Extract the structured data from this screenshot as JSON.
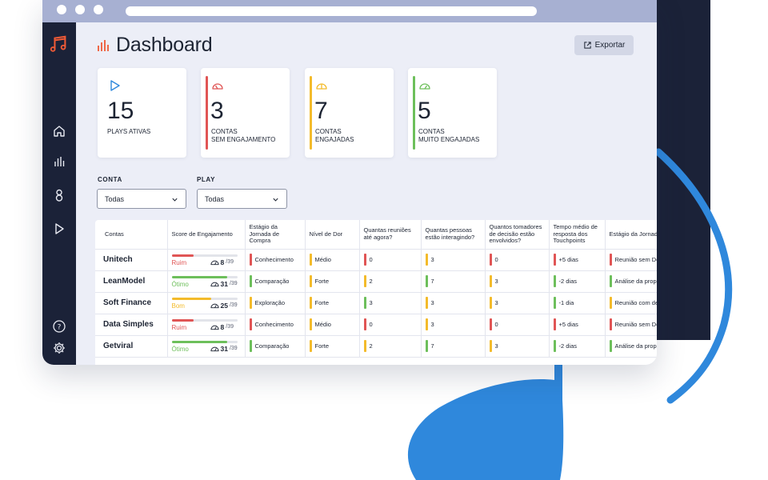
{
  "colors": {
    "red": "#e05555",
    "yellow": "#f3bb2b",
    "green": "#6dbf5b",
    "blue": "#2f88dc",
    "navy": "#1b2238",
    "orange": "#ef5a36"
  },
  "sidebar": {
    "icons": [
      "music-note-logo-icon",
      "home-icon",
      "bar-chart-icon",
      "user-icon",
      "play-icon",
      "help-icon",
      "gear-icon"
    ]
  },
  "header": {
    "title": "Dashboard",
    "export_label": "Exportar"
  },
  "cards": [
    {
      "value": "15",
      "label": "PLAYS ATIVAS",
      "icon": "play-icon",
      "accent": ""
    },
    {
      "value": "3",
      "label": "CONTAS\nSEM ENGAJAMENTO",
      "icon": "gauge-icon",
      "accent": "#e05555"
    },
    {
      "value": "7",
      "label": "CONTAS\nENGAJADAS",
      "icon": "gauge-icon",
      "accent": "#f3bb2b"
    },
    {
      "value": "5",
      "label": "CONTAS\nMUITO ENGAJADAS",
      "icon": "gauge-icon",
      "accent": "#6dbf5b"
    }
  ],
  "filters": {
    "conta": {
      "label": "CONTA",
      "value": "Todas"
    },
    "play": {
      "label": "PLAY",
      "value": "Todas"
    }
  },
  "table": {
    "headers": [
      "Contas",
      "Score de Engajamento",
      "Estágio da Jornada de Compra",
      "Nível de Dor",
      "Quantas reuniões até agora?",
      "Quantas pessoas estão interagindo?",
      "Quantos tomadores de decisão estão envolvidos?",
      "Tempo médio de resposta dos Touchpoints",
      "Estágio da Jornada de Decisão"
    ],
    "rows": [
      {
        "account": "Unitech",
        "level": "Ruim",
        "level_color": "#e05555",
        "score": "8",
        "max": "/39",
        "fill": 0.33,
        "cells": [
          [
            "Conhecimento",
            "#e05555"
          ],
          [
            "Médio",
            "#f3bb2b"
          ],
          [
            "0",
            "#e05555"
          ],
          [
            "3",
            "#f3bb2b"
          ],
          [
            "0",
            "#e05555"
          ],
          [
            "+5 dias",
            "#e05555"
          ],
          [
            "Reunião sem Decisor",
            "#e05555"
          ]
        ]
      },
      {
        "account": "LeanModel",
        "level": "Ótimo",
        "level_color": "#6dbf5b",
        "score": "31",
        "max": "/39",
        "fill": 0.85,
        "cells": [
          [
            "Comparação",
            "#6dbf5b"
          ],
          [
            "Forte",
            "#f3bb2b"
          ],
          [
            "2",
            "#f3bb2b"
          ],
          [
            "7",
            "#6dbf5b"
          ],
          [
            "3",
            "#f3bb2b"
          ],
          [
            "-2 dias",
            "#6dbf5b"
          ],
          [
            "Análise da proposta",
            "#6dbf5b"
          ]
        ]
      },
      {
        "account": "Soft Finance",
        "level": "Bom",
        "level_color": "#f3bb2b",
        "score": "25",
        "max": "/39",
        "fill": 0.6,
        "cells": [
          [
            "Exploração",
            "#f3bb2b"
          ],
          [
            "Forte",
            "#f3bb2b"
          ],
          [
            "3",
            "#6dbf5b"
          ],
          [
            "3",
            "#f3bb2b"
          ],
          [
            "3",
            "#f3bb2b"
          ],
          [
            "-1 dia",
            "#6dbf5b"
          ],
          [
            "Reunião com decisor",
            "#f3bb2b"
          ]
        ]
      },
      {
        "account": "Data Simples",
        "level": "Ruim",
        "level_color": "#e05555",
        "score": "8",
        "max": "/39",
        "fill": 0.33,
        "cells": [
          [
            "Conhecimento",
            "#e05555"
          ],
          [
            "Médio",
            "#f3bb2b"
          ],
          [
            "0",
            "#e05555"
          ],
          [
            "3",
            "#f3bb2b"
          ],
          [
            "0",
            "#e05555"
          ],
          [
            "+5 dias",
            "#e05555"
          ],
          [
            "Reunião sem Decisor",
            "#e05555"
          ]
        ]
      },
      {
        "account": "Getviral",
        "level": "Ótimo",
        "level_color": "#6dbf5b",
        "score": "31",
        "max": "/39",
        "fill": 0.85,
        "cells": [
          [
            "Comparação",
            "#6dbf5b"
          ],
          [
            "Forte",
            "#f3bb2b"
          ],
          [
            "2",
            "#f3bb2b"
          ],
          [
            "7",
            "#6dbf5b"
          ],
          [
            "3",
            "#f3bb2b"
          ],
          [
            "-2 dias",
            "#6dbf5b"
          ],
          [
            "Análise da proposta",
            "#6dbf5b"
          ]
        ]
      }
    ]
  }
}
